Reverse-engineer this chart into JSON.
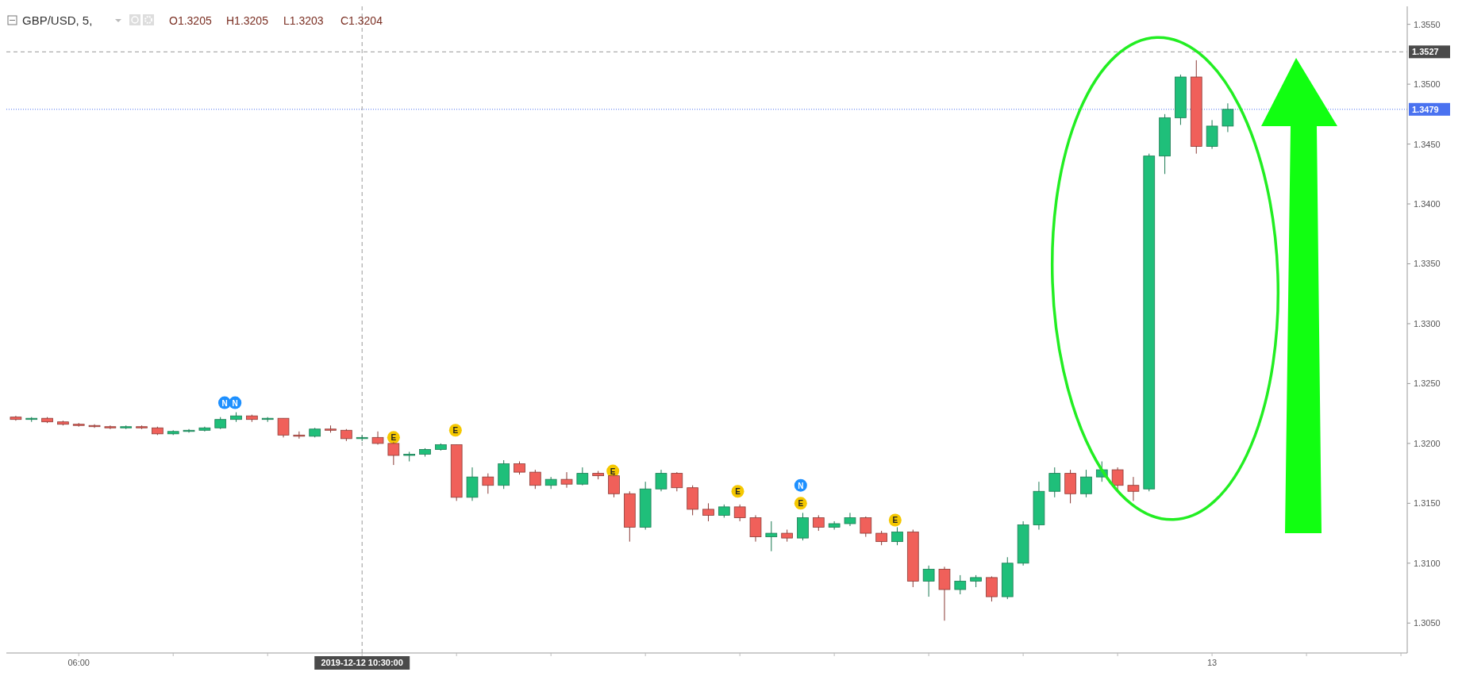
{
  "chart_data": {
    "type": "candlestick",
    "title": "GBP/USD, 5,",
    "annotations": [
      "O1.3205",
      "H1.3205",
      "L1.3203",
      "C1.3204",
      {
        "text": "N",
        "x": "2019-12-12T08:19",
        "y": 1.3234
      },
      {
        "text": "N",
        "x": "2019-12-12T08:29",
        "y": 1.3234
      },
      {
        "text": "E",
        "x": "2019-12-12T11:00",
        "y": 1.3205
      },
      {
        "text": "E",
        "x": "2019-12-12T11:59",
        "y": 1.3211
      },
      {
        "text": "E",
        "x": "2019-12-12T14:29",
        "y": 1.3177
      },
      {
        "text": "E",
        "x": "2019-12-12T16:28",
        "y": 1.316
      },
      {
        "text": "N",
        "x": "2019-12-12T17:28",
        "y": 1.3165
      },
      {
        "text": "E",
        "x": "2019-12-12T17:28",
        "y": 1.315
      },
      {
        "text": "E",
        "x": "2019-12-12T18:58",
        "y": 1.3136
      }
    ],
    "x": [
      "2019-12-12T05:00",
      "2019-12-12T05:15",
      "2019-12-12T05:30",
      "2019-12-12T05:45",
      "2019-12-12T06:00",
      "2019-12-12T06:15",
      "2019-12-12T06:30",
      "2019-12-12T06:45",
      "2019-12-12T07:00",
      "2019-12-12T07:15",
      "2019-12-12T07:30",
      "2019-12-12T07:45",
      "2019-12-12T08:00",
      "2019-12-12T08:15",
      "2019-12-12T08:30",
      "2019-12-12T08:45",
      "2019-12-12T09:00",
      "2019-12-12T09:15",
      "2019-12-12T09:30",
      "2019-12-12T09:45",
      "2019-12-12T10:00",
      "2019-12-12T10:15",
      "2019-12-12T10:30",
      "2019-12-12T10:45",
      "2019-12-12T11:00",
      "2019-12-12T11:15",
      "2019-12-12T11:30",
      "2019-12-12T11:45",
      "2019-12-12T12:00",
      "2019-12-12T12:15",
      "2019-12-12T12:30",
      "2019-12-12T12:45",
      "2019-12-12T13:00",
      "2019-12-12T13:15",
      "2019-12-12T13:30",
      "2019-12-12T13:45",
      "2019-12-12T14:00",
      "2019-12-12T14:15",
      "2019-12-12T14:30",
      "2019-12-12T14:45",
      "2019-12-12T15:00",
      "2019-12-12T15:15",
      "2019-12-12T15:30",
      "2019-12-12T15:45",
      "2019-12-12T16:00",
      "2019-12-12T16:15",
      "2019-12-12T16:30",
      "2019-12-12T16:45",
      "2019-12-12T17:00",
      "2019-12-12T17:15",
      "2019-12-12T17:30",
      "2019-12-12T17:45",
      "2019-12-12T18:00",
      "2019-12-12T18:15",
      "2019-12-12T18:30",
      "2019-12-12T18:45",
      "2019-12-12T19:00",
      "2019-12-12T19:15",
      "2019-12-12T19:30",
      "2019-12-12T19:45",
      "2019-12-12T20:00",
      "2019-12-12T20:15",
      "2019-12-12T20:30",
      "2019-12-12T20:45",
      "2019-12-12T21:00",
      "2019-12-12T21:15",
      "2019-12-12T21:30",
      "2019-12-12T21:45",
      "2019-12-12T22:00",
      "2019-12-12T22:15",
      "2019-12-12T22:30",
      "2019-12-12T22:45",
      "2019-12-12T23:00",
      "2019-12-12T23:15",
      "2019-12-12T23:30",
      "2019-12-12T23:45",
      "2019-12-13T00:00",
      "2019-12-13T00:15"
    ],
    "ohlc": [
      [
        1.3222,
        1.3223,
        1.3219,
        1.322
      ],
      [
        1.322,
        1.3222,
        1.3218,
        1.3221
      ],
      [
        1.3221,
        1.3222,
        1.3217,
        1.3218
      ],
      [
        1.3218,
        1.3219,
        1.3215,
        1.3216
      ],
      [
        1.3216,
        1.3217,
        1.3214,
        1.3215
      ],
      [
        1.3215,
        1.3216,
        1.3213,
        1.3214
      ],
      [
        1.3214,
        1.3215,
        1.3212,
        1.3213
      ],
      [
        1.3213,
        1.3215,
        1.3212,
        1.3214
      ],
      [
        1.3214,
        1.3215,
        1.3212,
        1.3213
      ],
      [
        1.3213,
        1.3214,
        1.3207,
        1.3208
      ],
      [
        1.3208,
        1.3211,
        1.3207,
        1.321
      ],
      [
        1.321,
        1.3212,
        1.3209,
        1.3211
      ],
      [
        1.3211,
        1.3214,
        1.321,
        1.3213
      ],
      [
        1.3213,
        1.3222,
        1.3212,
        1.322
      ],
      [
        1.322,
        1.3226,
        1.3218,
        1.3223
      ],
      [
        1.3223,
        1.3224,
        1.3218,
        1.322
      ],
      [
        1.322,
        1.3222,
        1.3218,
        1.3221
      ],
      [
        1.3221,
        1.3221,
        1.3205,
        1.3207
      ],
      [
        1.3207,
        1.321,
        1.3204,
        1.3206
      ],
      [
        1.3206,
        1.3213,
        1.3205,
        1.3212
      ],
      [
        1.3212,
        1.3215,
        1.3209,
        1.3211
      ],
      [
        1.3211,
        1.3212,
        1.3202,
        1.3204
      ],
      [
        1.3204,
        1.3207,
        1.3202,
        1.3205
      ],
      [
        1.3205,
        1.321,
        1.3199,
        1.32
      ],
      [
        1.32,
        1.3201,
        1.3182,
        1.319
      ],
      [
        1.319,
        1.3193,
        1.3185,
        1.3191
      ],
      [
        1.3191,
        1.3196,
        1.3189,
        1.3195
      ],
      [
        1.3195,
        1.32,
        1.3194,
        1.3199
      ],
      [
        1.3199,
        1.3199,
        1.3152,
        1.3155
      ],
      [
        1.3155,
        1.318,
        1.3152,
        1.3172
      ],
      [
        1.3172,
        1.3175,
        1.3158,
        1.3165
      ],
      [
        1.3165,
        1.3186,
        1.3162,
        1.3183
      ],
      [
        1.3183,
        1.3185,
        1.3174,
        1.3176
      ],
      [
        1.3176,
        1.3178,
        1.3162,
        1.3165
      ],
      [
        1.3165,
        1.3172,
        1.3162,
        1.317
      ],
      [
        1.317,
        1.3176,
        1.3163,
        1.3166
      ],
      [
        1.3166,
        1.318,
        1.3165,
        1.3175
      ],
      [
        1.3175,
        1.3177,
        1.317,
        1.3173
      ],
      [
        1.3173,
        1.3174,
        1.3155,
        1.3158
      ],
      [
        1.3158,
        1.316,
        1.3118,
        1.313
      ],
      [
        1.313,
        1.3168,
        1.3128,
        1.3162
      ],
      [
        1.3162,
        1.3178,
        1.316,
        1.3175
      ],
      [
        1.3175,
        1.3176,
        1.316,
        1.3163
      ],
      [
        1.3163,
        1.3165,
        1.314,
        1.3145
      ],
      [
        1.3145,
        1.315,
        1.3135,
        1.314
      ],
      [
        1.314,
        1.3149,
        1.3138,
        1.3147
      ],
      [
        1.3147,
        1.3149,
        1.3135,
        1.3138
      ],
      [
        1.3138,
        1.314,
        1.3118,
        1.3122
      ],
      [
        1.3122,
        1.3135,
        1.311,
        1.3125
      ],
      [
        1.3125,
        1.3128,
        1.3118,
        1.3121
      ],
      [
        1.3121,
        1.3142,
        1.3119,
        1.3138
      ],
      [
        1.3138,
        1.314,
        1.3127,
        1.313
      ],
      [
        1.313,
        1.3135,
        1.3128,
        1.3133
      ],
      [
        1.3133,
        1.3142,
        1.3131,
        1.3138
      ],
      [
        1.3138,
        1.3139,
        1.3122,
        1.3125
      ],
      [
        1.3125,
        1.3127,
        1.3115,
        1.3118
      ],
      [
        1.3118,
        1.313,
        1.3115,
        1.3126
      ],
      [
        1.3126,
        1.3128,
        1.308,
        1.3085
      ],
      [
        1.3085,
        1.3098,
        1.3072,
        1.3095
      ],
      [
        1.3095,
        1.3097,
        1.3052,
        1.3078
      ],
      [
        1.3078,
        1.309,
        1.3074,
        1.3085
      ],
      [
        1.3085,
        1.309,
        1.308,
        1.3088
      ],
      [
        1.3088,
        1.3089,
        1.3068,
        1.3072
      ],
      [
        1.3072,
        1.3105,
        1.307,
        1.31
      ],
      [
        1.31,
        1.3135,
        1.3098,
        1.3132
      ],
      [
        1.3132,
        1.3168,
        1.3128,
        1.316
      ],
      [
        1.316,
        1.318,
        1.3155,
        1.3175
      ],
      [
        1.3175,
        1.3178,
        1.315,
        1.3158
      ],
      [
        1.3158,
        1.3178,
        1.3155,
        1.3172
      ],
      [
        1.3172,
        1.3185,
        1.3168,
        1.3178
      ],
      [
        1.3178,
        1.318,
        1.316,
        1.3165
      ],
      [
        1.3165,
        1.3172,
        1.3152,
        1.316
      ],
      [
        1.3162,
        1.3442,
        1.316,
        1.344
      ],
      [
        1.344,
        1.3475,
        1.3425,
        1.3472
      ],
      [
        1.3472,
        1.3508,
        1.3466,
        1.3506
      ],
      [
        1.3506,
        1.352,
        1.3442,
        1.3448
      ],
      [
        1.3448,
        1.347,
        1.3446,
        1.3465
      ],
      [
        1.3465,
        1.3484,
        1.346,
        1.3479
      ]
    ],
    "xlim": [
      "2019-12-12T04:51",
      "2019-12-13T03:06"
    ],
    "xticks": [
      {
        "value": "2019-12-12T06:00",
        "label": "06:00"
      },
      {
        "value": "2019-12-12T07:30",
        "label": null
      },
      {
        "value": "2019-12-12T09:00",
        "label": null
      },
      {
        "value": "2019-12-12T10:30",
        "label": null
      },
      {
        "value": "2019-12-12T12:00",
        "label": null
      },
      {
        "value": "2019-12-12T13:30",
        "label": null
      },
      {
        "value": "2019-12-12T15:00",
        "label": null
      },
      {
        "value": "2019-12-12T16:30",
        "label": null
      },
      {
        "value": "2019-12-12T18:00",
        "label": null
      },
      {
        "value": "2019-12-12T19:30",
        "label": null
      },
      {
        "value": "2019-12-12T21:00",
        "label": null
      },
      {
        "value": "2019-12-12T22:30",
        "label": null
      },
      {
        "value": "2019-12-13T00:00",
        "label": "13"
      },
      {
        "value": "2019-12-13T01:30",
        "label": null
      },
      {
        "value": "2019-12-13T03:00",
        "label": null
      }
    ],
    "ylim": [
      1.3025,
      1.3565
    ],
    "yticks": [
      {
        "value": 1.305,
        "label": "1.3050"
      },
      {
        "value": 1.31,
        "label": "1.3100"
      },
      {
        "value": 1.315,
        "label": "1.3150"
      },
      {
        "value": 1.32,
        "label": "1.3200"
      },
      {
        "value": 1.325,
        "label": "1.3250"
      },
      {
        "value": 1.33,
        "label": "1.3300"
      },
      {
        "value": 1.335,
        "label": "1.3350"
      },
      {
        "value": 1.34,
        "label": "1.3400"
      },
      {
        "value": 1.345,
        "label": "1.3450"
      },
      {
        "value": 1.35,
        "label": "1.3500"
      },
      {
        "value": 1.355,
        "label": "1.3550"
      }
    ],
    "ref_lines": [
      {
        "axis": "y",
        "value": 1.3527,
        "label": "1.3527",
        "color": "#999999",
        "line_style": "dashed"
      },
      {
        "axis": "y",
        "value": 1.3479,
        "label": "1.3479",
        "color": "#4a72f0",
        "line_style": "dotted"
      },
      {
        "axis": "x",
        "value": "2019-12-12T10:30",
        "label": "2019-12-12 10:30:00",
        "color": "#999999",
        "line_style": "dashed"
      }
    ],
    "grid": false
  }
}
